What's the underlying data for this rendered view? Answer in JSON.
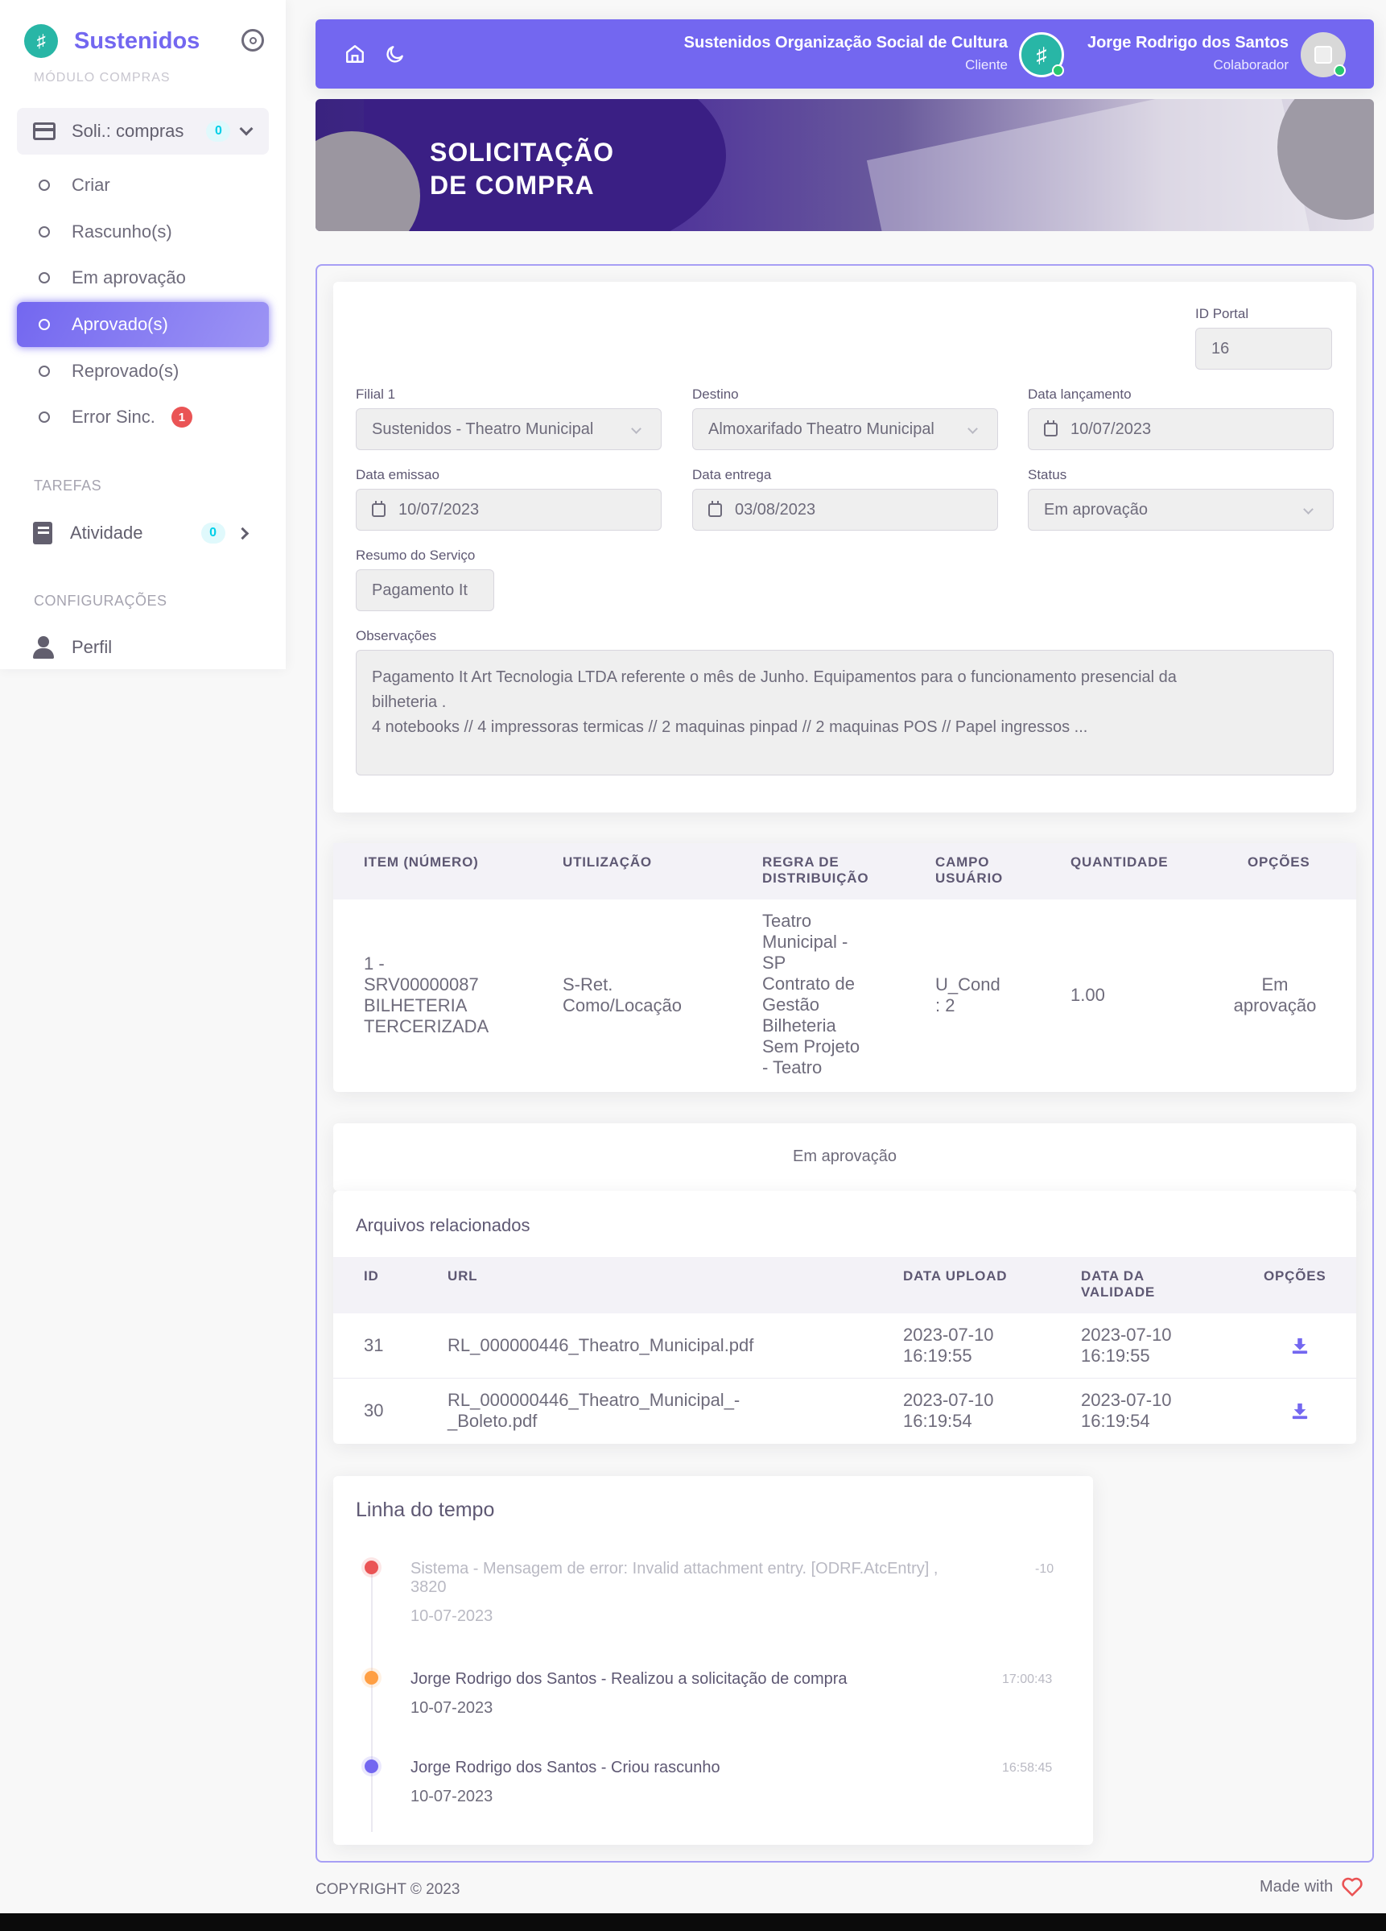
{
  "sidebar": {
    "brand": "Sustenidos",
    "module_header": "MÓDULO COMPRAS",
    "parent_item": {
      "label": "Soli.: compras",
      "badge": "0"
    },
    "sub_items": [
      {
        "label": "Criar"
      },
      {
        "label": "Rascunho(s)"
      },
      {
        "label": "Em aprovação"
      },
      {
        "label": "Aprovado(s)"
      },
      {
        "label": "Reprovado(s)"
      },
      {
        "label": "Error Sinc.",
        "badge": "1"
      }
    ],
    "tasks_header": "TAREFAS",
    "activity": {
      "label": "Atividade",
      "badge": "0"
    },
    "config_header": "CONFIGURAÇÕES",
    "profile": {
      "label": "Perfil"
    }
  },
  "navbar": {
    "org_name": "Sustenidos Organização Social de Cultura",
    "org_role": "Cliente",
    "user_name": "Jorge Rodrigo dos Santos",
    "user_role": "Colaborador",
    "accent": "#7367f0"
  },
  "banner": {
    "line1": "SOLICITAÇÃO",
    "line2": "DE COMPRA"
  },
  "form": {
    "id_portal": {
      "label": "ID Portal",
      "value": "16"
    },
    "filial": {
      "label": "Filial 1",
      "value": "Sustenidos - Theatro Municipal"
    },
    "destino": {
      "label": "Destino",
      "value": "Almoxarifado Theatro Municipal"
    },
    "data_lancamento": {
      "label": "Data lançamento",
      "value": "10/07/2023"
    },
    "data_emissao": {
      "label": "Data emissao",
      "value": "10/07/2023"
    },
    "data_entrega": {
      "label": "Data entrega",
      "value": "03/08/2023"
    },
    "status": {
      "label": "Status",
      "value": "Em aprovação"
    },
    "resumo": {
      "label": "Resumo do Serviço",
      "value": "Pagamento It"
    },
    "observacoes": {
      "label": "Observações",
      "lines": [
        "Pagamento It Art Tecnologia LTDA referente o mês de Junho. Equipamentos para o funcionamento presencial da",
        "bilheteria .",
        "4 notebooks // 4 impressoras termicas // 2 maquinas pinpad // 2 maquinas POS // Papel ingressos ..."
      ]
    }
  },
  "items_table": {
    "headers": {
      "item": [
        "ITEM (NÚMERO)"
      ],
      "utilizacao": [
        "UTILIZAÇÃO"
      ],
      "regra": [
        "REGRA DE",
        "DISTRIBUIÇÃO"
      ],
      "campo": [
        "CAMPO",
        "USUÁRIO"
      ],
      "quantidade": [
        "QUANTIDADE"
      ],
      "opcoes": [
        "OPÇÕES"
      ]
    },
    "row": {
      "item": [
        "1 -",
        "SRV00000087",
        "BILHETERIA",
        "TERCERIZADA"
      ],
      "utilizacao": [
        "S-Ret.",
        "Como/Locação"
      ],
      "regra": [
        "Teatro",
        "Municipal -",
        "SP",
        "Contrato de",
        "Gestão",
        "Bilheteria",
        "Sem Projeto",
        "- Teatro"
      ],
      "campo": [
        "U_Cond",
        ": 2"
      ],
      "quantidade": "1.00",
      "opcoes": [
        "Em",
        "aprovação"
      ]
    }
  },
  "status_bar": "Em aprovação",
  "files": {
    "title": "Arquivos relacionados",
    "headers": {
      "id": [
        "ID"
      ],
      "url": [
        "URL"
      ],
      "upload": [
        "DATA UPLOAD"
      ],
      "validade": [
        "DATA DA",
        "VALIDADE"
      ],
      "opcoes": [
        "OPÇÕES"
      ]
    },
    "rows": [
      {
        "id": "31",
        "url": [
          "RL_000000446_Theatro_Municipal.pdf"
        ],
        "upload": [
          "2023-07-10",
          "16:19:55"
        ],
        "validade": [
          "2023-07-10",
          "16:19:55"
        ],
        "icon": "download-icon"
      },
      {
        "id": "30",
        "url": [
          "RL_000000446_Theatro_Municipal_-",
          "_Boleto.pdf"
        ],
        "upload": [
          "2023-07-10",
          "16:19:54"
        ],
        "validade": [
          "2023-07-10",
          "16:19:54"
        ],
        "icon": "download-icon"
      }
    ]
  },
  "timeline": {
    "title": "Linha do tempo",
    "events": [
      {
        "text": [
          "Sistema - Mensagem de error: Invalid attachment entry. [ODRF.AtcEntry] ,",
          "3820"
        ],
        "time": "-10",
        "date": "10-07-2023",
        "color": "#ea5455"
      },
      {
        "text": [
          "Jorge Rodrigo dos Santos - Realizou a solicitação de compra"
        ],
        "time": "17:00:43",
        "date": "10-07-2023",
        "color": "#ff9f43"
      },
      {
        "text": [
          "Jorge Rodrigo dos Santos - Criou rascunho"
        ],
        "time": "16:58:45",
        "date": "10-07-2023",
        "color": "#7367f0"
      }
    ]
  },
  "footer": {
    "copyright": "COPYRIGHT © 2023",
    "made_with": "Made with"
  }
}
